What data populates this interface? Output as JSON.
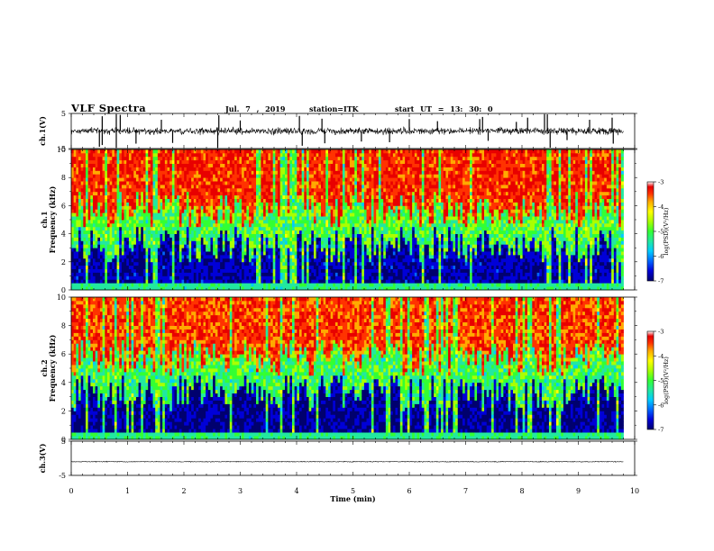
{
  "header": {
    "title": "VLF Spectra",
    "date": "Jul. 7 , 2019",
    "station": "station=ITK",
    "start": "start UT = 13: 30: 0"
  },
  "colors": {
    "colormap": [
      "#00006e",
      "#0000d8",
      "#0066ff",
      "#00ccff",
      "#22e8a0",
      "#33ff33",
      "#aaff00",
      "#ffff00",
      "#ffaa00",
      "#ff3300",
      "#e80000",
      "#ffffff"
    ],
    "trace": "#000000",
    "axes": "#000000"
  },
  "chart_data": [
    {
      "id": "ch1-waveform",
      "type": "line",
      "ylabel": "ch.1(V)",
      "ylim": [
        -5,
        5
      ],
      "yticks": [
        "5",
        "-5"
      ],
      "xlim": [
        0,
        10
      ],
      "x_extent_min": 9.8,
      "baseline": 0,
      "noise_amplitude": 0.9,
      "spikes": [
        [
          0.5,
          -4.5
        ],
        [
          0.55,
          4.2
        ],
        [
          0.55,
          -4
        ],
        [
          0.8,
          5
        ],
        [
          0.8,
          -5
        ],
        [
          0.87,
          4.6
        ],
        [
          1.15,
          -3.6
        ],
        [
          1.6,
          3.2
        ],
        [
          1.8,
          -3.4
        ],
        [
          2.6,
          -4.8
        ],
        [
          2.62,
          4.5
        ],
        [
          3.0,
          3
        ],
        [
          4.05,
          4.3
        ],
        [
          4.1,
          -4.2
        ],
        [
          4.45,
          3.5
        ],
        [
          4.5,
          -3.5
        ],
        [
          5.15,
          -3
        ],
        [
          5.65,
          -3.2
        ],
        [
          6.0,
          3.4
        ],
        [
          6.5,
          2.8
        ],
        [
          7.25,
          3.4
        ],
        [
          7.3,
          4
        ],
        [
          7.4,
          -2.8
        ],
        [
          7.9,
          2.6
        ],
        [
          8.1,
          3.8
        ],
        [
          8.4,
          5
        ],
        [
          8.45,
          4.8
        ],
        [
          8.5,
          -4.8
        ],
        [
          8.8,
          -2.6
        ],
        [
          9.2,
          3.2
        ],
        [
          9.6,
          3.8
        ],
        [
          9.62,
          -3.6
        ]
      ]
    },
    {
      "id": "ch1-spectrogram",
      "type": "heatmap",
      "ylabel": "ch.1",
      "ylabel2": "Frequency (kHz)",
      "ylim": [
        0,
        10
      ],
      "yticks": [
        "0",
        "2",
        "4",
        "6",
        "8",
        "10"
      ],
      "xlim": [
        0,
        10
      ],
      "x_extent_min": 9.8,
      "colorbar": {
        "label": "log(PSD)(V²/Hz)",
        "range": [
          -7,
          -3
        ],
        "ticks": [
          "-3",
          "-4",
          "-5",
          "-6",
          "-7"
        ]
      },
      "cutoff_khz_typical": 4.5,
      "levels_log_psd": {
        "below_cutoff": -6.6,
        "band_4_6_khz": -5.0,
        "above_6_khz": -3.6
      }
    },
    {
      "id": "ch2-spectrogram",
      "type": "heatmap",
      "ylabel": "ch.2",
      "ylabel2": "Frequency (kHz)",
      "ylim": [
        0,
        10
      ],
      "yticks": [
        "0",
        "2",
        "4",
        "6",
        "8",
        "10"
      ],
      "xlim": [
        0,
        10
      ],
      "x_extent_min": 9.8,
      "colorbar": {
        "label": "log(PSD)(V²/Hz)",
        "range": [
          -7,
          -3
        ],
        "ticks": [
          "-3",
          "-4",
          "-5",
          "-6",
          "-7"
        ]
      },
      "cutoff_khz_typical": 4.5,
      "levels_log_psd": {
        "below_cutoff": -6.7,
        "band_4_6_khz": -5.1,
        "above_6_khz": -3.7
      }
    },
    {
      "id": "ch3-waveform",
      "type": "line",
      "ylabel": "ch.3(V)",
      "ylim": [
        -5,
        5
      ],
      "yticks": [
        "5",
        "-5"
      ],
      "xlim": [
        0,
        10
      ],
      "x_extent_min": 9.8,
      "baseline": -1,
      "noise_amplitude": 0.1,
      "xlabel": "Time (min)",
      "xticks": [
        "0",
        "1",
        "2",
        "3",
        "4",
        "5",
        "6",
        "7",
        "8",
        "9",
        "10"
      ]
    }
  ]
}
